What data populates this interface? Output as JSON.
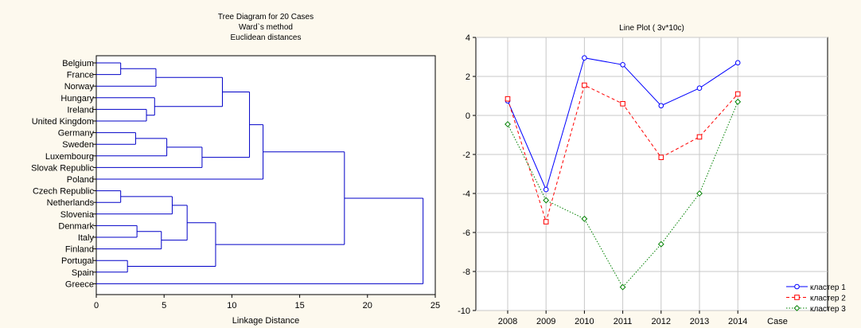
{
  "chart_data": [
    {
      "type": "dendrogram",
      "title_lines": [
        "Tree Diagram for 20 Cases",
        "Ward`s method",
        "Euclidean distances"
      ],
      "xlabel": "Linkage Distance",
      "xlim": [
        0,
        25
      ],
      "xticks": [
        "0",
        "5",
        "10",
        "15",
        "20",
        "25"
      ],
      "xtick_values": [
        0,
        5,
        10,
        15,
        20,
        25
      ],
      "leaves": [
        "Belgium",
        "France",
        "Norway",
        "Hungary",
        "Ireland",
        "United Kingdom",
        "Germany",
        "Sweden",
        "Luxembourg",
        "Slovak Republic",
        "Poland",
        "Czech Republic",
        "Netherlands",
        "Slovenia",
        "Denmark",
        "Italy",
        "Finland",
        "Portugal",
        "Spain",
        "Greece"
      ],
      "merges": [
        {
          "a": "Belgium",
          "b": "France",
          "height": 1.8
        },
        {
          "a": "Czech Republic",
          "b": "Netherlands",
          "height": 1.8
        },
        {
          "a": "Portugal",
          "b": "Spain",
          "height": 2.3
        },
        {
          "a": "Germany",
          "b": "Sweden",
          "height": 2.9
        },
        {
          "a": "Denmark",
          "b": "Italy",
          "height": 3.0
        },
        {
          "a": "Ireland",
          "b": "United Kingdom",
          "height": 3.7
        },
        {
          "a": "Hungary",
          "b": "Ireland+United Kingdom",
          "height": 4.3
        },
        {
          "a": "Belgium+France",
          "b": "Norway",
          "height": 4.4
        },
        {
          "a": "Denmark+Italy",
          "b": "Finland",
          "height": 4.8
        },
        {
          "a": "Germany+Sweden",
          "b": "Luxembourg",
          "height": 5.2
        },
        {
          "a": "Czech Republic+Netherlands",
          "b": "Slovenia",
          "height": 5.6
        },
        {
          "a": "Czech Republic..Slovenia",
          "b": "Denmark..Finland",
          "height": 6.7
        },
        {
          "a": "Germany..Luxembourg",
          "b": "Slovak Republic",
          "height": 7.8
        },
        {
          "a": "Belgium..Norway",
          "b": "Hungary..United Kingdom",
          "height": 9.3
        },
        {
          "a": "Czech Republic..Finland",
          "b": "Portugal+Spain",
          "height": 8.8
        },
        {
          "a": "Belgium..United Kingdom",
          "b": "Germany..Slovak Republic",
          "height": 11.3
        },
        {
          "a": "Belgium..Slovak Republic",
          "b": "Poland",
          "height": 12.3
        },
        {
          "a": "Belgium..Poland",
          "b": "Czech Republic..Spain",
          "height": 18.3
        },
        {
          "a": "Belgium..Spain",
          "b": "Greece",
          "height": 24.1
        }
      ],
      "line_color": "#0000c8"
    },
    {
      "type": "line",
      "title": "Line Plot ( 3v*10c)",
      "xlabel": "Case",
      "categories": [
        "2008",
        "2009",
        "2010",
        "2011",
        "2012",
        "2013",
        "2014"
      ],
      "ylim": [
        -10,
        4
      ],
      "yticks": [
        "4",
        "2",
        "0",
        "-2",
        "-4",
        "-6",
        "-8",
        "-10"
      ],
      "ytick_values": [
        4,
        2,
        0,
        -2,
        -4,
        -6,
        -8,
        -10
      ],
      "grid": true,
      "legend_position": "bottom-right",
      "series": [
        {
          "name": "кластер 1",
          "values": [
            0.75,
            -3.8,
            2.95,
            2.6,
            0.5,
            1.4,
            2.7
          ],
          "color": "#0000ff",
          "dash": "solid",
          "marker": "circle"
        },
        {
          "name": "кластер 2",
          "values": [
            0.85,
            -5.45,
            1.55,
            0.6,
            -2.15,
            -1.1,
            1.1
          ],
          "color": "#ff0000",
          "dash": "dashed",
          "marker": "square"
        },
        {
          "name": "кластер 3",
          "values": [
            -0.45,
            -4.35,
            -5.3,
            -8.8,
            -6.6,
            -4.0,
            0.7
          ],
          "color": "#008000",
          "dash": "dotted",
          "marker": "diamond"
        }
      ]
    }
  ]
}
